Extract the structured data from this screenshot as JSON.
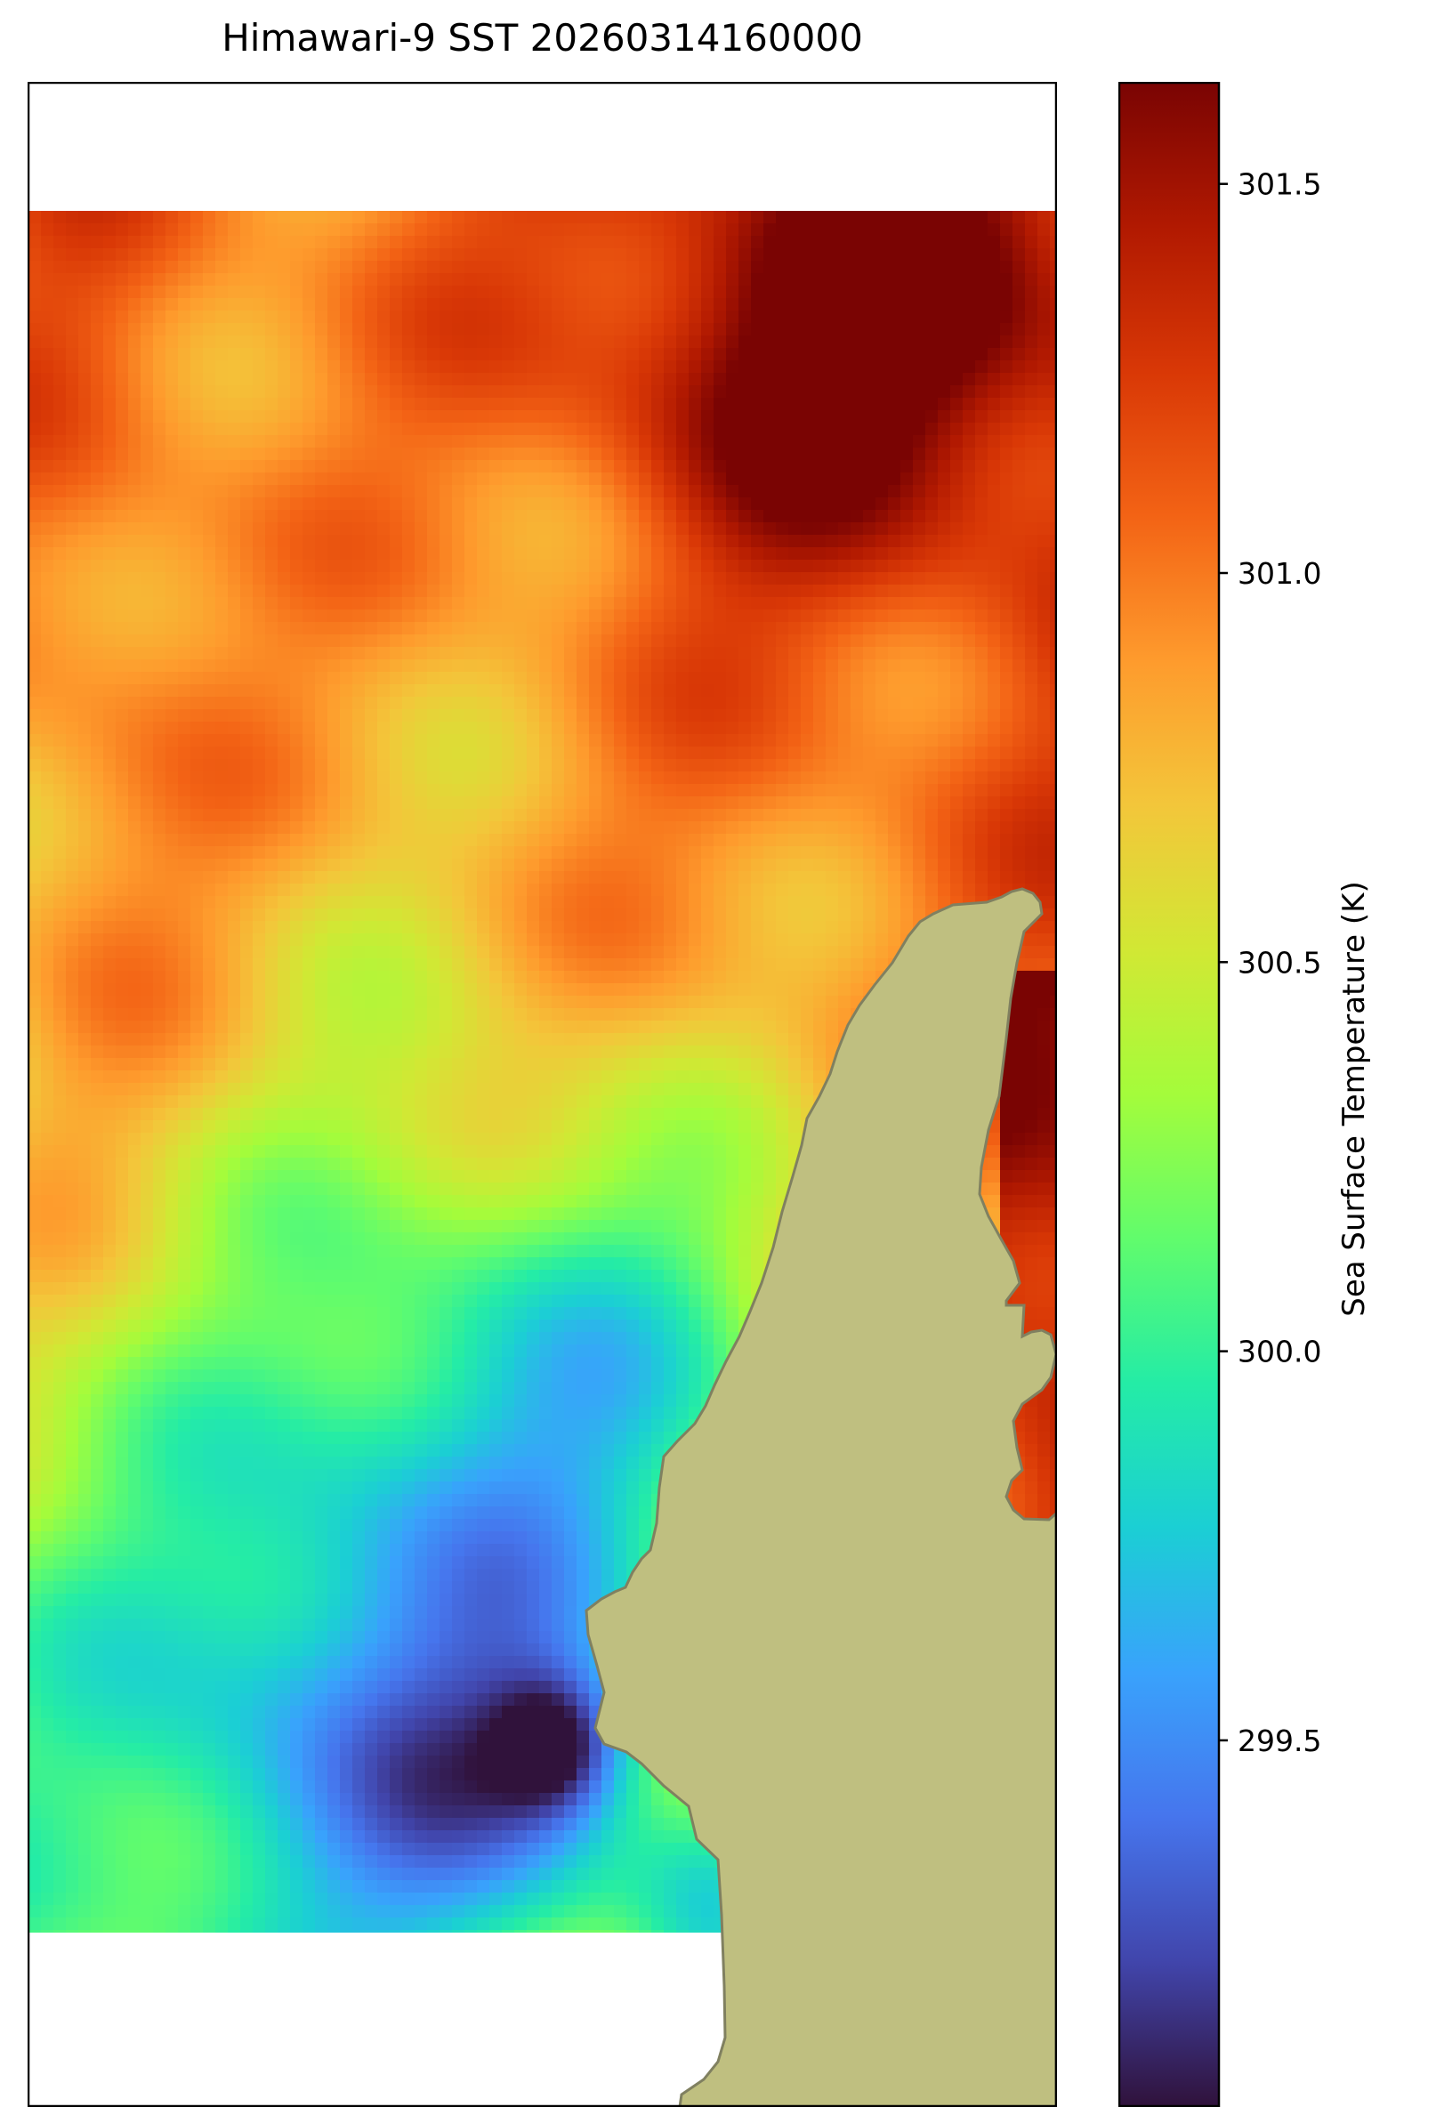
{
  "title": "Himawari-9 SST 20260314160000",
  "colorbar": {
    "label": "Sea Surface Temperature (K)",
    "ticks": [
      "299.5",
      "300.0",
      "300.5",
      "301.0",
      "301.5"
    ],
    "tick_values": [
      299.5,
      300.0,
      300.5,
      301.0,
      301.5
    ],
    "range": [
      299.03,
      301.63
    ],
    "colormap": "turbo",
    "colors": [
      "#30123b",
      "#4145ab",
      "#4675ed",
      "#39a2fc",
      "#1bcfd4",
      "#24eca6",
      "#61fc6c",
      "#a4fc3b",
      "#d1e834",
      "#f3c63a",
      "#fe9b2d",
      "#f36315",
      "#d93806",
      "#b11901",
      "#7a0403"
    ]
  },
  "map": {
    "land_color": "#bfbf80",
    "coastline_color": "#808060",
    "no_data_color": "#ffffff",
    "sst_field_description_values": {
      "northeast_max": 301.6,
      "southwest_bay_min": 299.1
    }
  }
}
